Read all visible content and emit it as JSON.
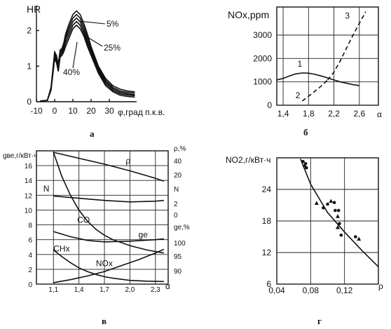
{
  "panel_captions": [
    "а",
    "б",
    "в",
    "г"
  ],
  "chart_data": [
    {
      "id": "a",
      "type": "line",
      "ylabel": "HR",
      "xlabel": "φ,град п.к.в.",
      "xlim": [
        -10,
        45
      ],
      "ylim": [
        0,
        2.7
      ],
      "x_ticks": [
        -10,
        0,
        10,
        20,
        30
      ],
      "x_tick_labels": [
        "-10",
        "0",
        "10",
        "20",
        "30"
      ],
      "y_ticks": [
        0,
        1,
        2
      ],
      "y_tick_labels": [
        "0",
        "1",
        "2"
      ],
      "annotations": [
        "5%",
        "25%",
        "40%"
      ],
      "series": [
        {
          "name": "5%",
          "x": [
            -8,
            -4,
            -2,
            0,
            1,
            2,
            3,
            4,
            5,
            6,
            8,
            10,
            12,
            14,
            16,
            18,
            20,
            24,
            28,
            32,
            36,
            40,
            44
          ],
          "y": [
            0.02,
            0.04,
            0.4,
            1.4,
            1.3,
            1.05,
            1.45,
            1.5,
            1.65,
            1.9,
            2.2,
            2.45,
            2.55,
            2.45,
            2.2,
            1.9,
            1.55,
            1.0,
            0.65,
            0.45,
            0.35,
            0.3,
            0.28
          ]
        },
        {
          "name": "",
          "x": [
            -8,
            -4,
            -2,
            0,
            1,
            2,
            3,
            4,
            5,
            6,
            8,
            10,
            12,
            14,
            16,
            18,
            20,
            24,
            28,
            32,
            36,
            40,
            44
          ],
          "y": [
            0.02,
            0.04,
            0.38,
            1.35,
            1.25,
            1.0,
            1.4,
            1.45,
            1.6,
            1.82,
            2.1,
            2.35,
            2.45,
            2.35,
            2.1,
            1.8,
            1.5,
            0.95,
            0.6,
            0.4,
            0.3,
            0.26,
            0.24
          ]
        },
        {
          "name": "25%",
          "x": [
            -8,
            -4,
            -2,
            0,
            1,
            2,
            3,
            4,
            5,
            6,
            8,
            10,
            12,
            14,
            16,
            18,
            20,
            24,
            28,
            32,
            36,
            40,
            44
          ],
          "y": [
            0.02,
            0.04,
            0.36,
            1.3,
            1.2,
            0.95,
            1.35,
            1.4,
            1.55,
            1.75,
            2.0,
            2.25,
            2.35,
            2.25,
            2.0,
            1.7,
            1.42,
            0.9,
            0.55,
            0.36,
            0.26,
            0.22,
            0.2
          ]
        },
        {
          "name": "",
          "x": [
            -8,
            -4,
            -2,
            0,
            1,
            2,
            3,
            4,
            5,
            6,
            8,
            10,
            12,
            14,
            16,
            18,
            20,
            24,
            28,
            32,
            36,
            40,
            44
          ],
          "y": [
            0.02,
            0.04,
            0.34,
            1.25,
            1.15,
            0.9,
            1.3,
            1.35,
            1.48,
            1.65,
            1.9,
            2.15,
            2.25,
            2.15,
            1.92,
            1.62,
            1.35,
            0.85,
            0.5,
            0.32,
            0.22,
            0.19,
            0.17
          ]
        },
        {
          "name": "40%",
          "x": [
            -8,
            -4,
            -2,
            0,
            1,
            2,
            3,
            4,
            5,
            6,
            8,
            10,
            12,
            14,
            16,
            18,
            20,
            24,
            28,
            32,
            36,
            40,
            44
          ],
          "y": [
            0.02,
            0.04,
            0.32,
            1.2,
            1.1,
            0.85,
            1.25,
            1.3,
            1.4,
            1.55,
            1.8,
            2.05,
            2.15,
            2.05,
            1.85,
            1.55,
            1.3,
            0.8,
            0.45,
            0.28,
            0.18,
            0.15,
            0.13
          ]
        }
      ]
    },
    {
      "id": "b",
      "type": "line",
      "ylabel": "NOx,ppm",
      "xlabel": "α",
      "xlim": [
        1.3,
        2.9
      ],
      "ylim": [
        0,
        4200
      ],
      "grid": true,
      "x_ticks": [
        1.4,
        1.8,
        2.2,
        2.6
      ],
      "x_tick_labels": [
        "1,4",
        "1,8",
        "2,2",
        "2,6"
      ],
      "y_ticks": [
        0,
        1000,
        2000,
        3000
      ],
      "y_tick_labels": [
        "0",
        "1000",
        "2000",
        "3000"
      ],
      "series": [
        {
          "name": "1",
          "x": [
            1.3,
            1.4,
            1.5,
            1.6,
            1.7,
            1.8,
            1.9,
            2.0,
            2.1,
            2.2,
            2.3,
            2.4,
            2.5,
            2.6
          ],
          "y": [
            1080,
            1150,
            1250,
            1340,
            1380,
            1370,
            1320,
            1250,
            1170,
            1080,
            1000,
            940,
            880,
            840
          ]
        },
        {
          "name": "2",
          "x": [
            1.7,
            1.8,
            1.9,
            2.0,
            2.1
          ],
          "y": [
            180,
            380,
            600,
            820,
            1080
          ]
        },
        {
          "name": "3",
          "x": [
            2.1,
            2.2,
            2.3,
            2.4,
            2.5,
            2.6,
            2.7
          ],
          "y": [
            1080,
            1420,
            1900,
            2450,
            3000,
            3500,
            4000
          ]
        }
      ]
    },
    {
      "id": "v",
      "type": "line",
      "xlabel": "α",
      "ylabel": "gве,г/кВт·ч",
      "ylabel_right": "ρ,%",
      "xlim": [
        0.9,
        2.45
      ],
      "ylim": [
        0,
        18
      ],
      "grid": true,
      "x_ticks": [
        1.1,
        1.4,
        1.7,
        2.0,
        2.3
      ],
      "x_tick_labels": [
        "1,1",
        "1,4",
        "1,7",
        "2,0",
        "2,3"
      ],
      "y_ticks": [
        0,
        2,
        4,
        6,
        8,
        10,
        12,
        14,
        16
      ],
      "y_tick_labels": [
        "0",
        "2",
        "4",
        "6",
        "8",
        "10",
        "12",
        "14",
        "16"
      ],
      "right_scale_labels": [
        "ρ,%",
        "40",
        "20",
        "N",
        "2",
        "0",
        "ge,%",
        "100",
        "95",
        "90"
      ],
      "series": [
        {
          "name": "ρ",
          "x": [
            1.1,
            1.4,
            1.7,
            2.0,
            2.3,
            2.4
          ],
          "y": [
            17.8,
            17.0,
            16.2,
            15.3,
            14.3,
            13.9
          ]
        },
        {
          "name": "N",
          "x": [
            1.1,
            1.4,
            1.7,
            2.0,
            2.3,
            2.4
          ],
          "y": [
            11.9,
            11.6,
            11.3,
            11.1,
            11.2,
            11.3
          ]
        },
        {
          "name": "CO",
          "x": [
            1.1,
            1.2,
            1.3,
            1.4,
            1.5,
            1.6,
            1.7,
            1.8,
            2.0,
            2.2,
            2.4
          ],
          "y": [
            17.8,
            14.5,
            12.0,
            10.0,
            8.5,
            7.4,
            6.6,
            6.0,
            5.2,
            4.6,
            4.2
          ]
        },
        {
          "name": "ge",
          "x": [
            1.1,
            1.3,
            1.5,
            1.7,
            2.0,
            2.3,
            2.4
          ],
          "y": [
            7.1,
            6.4,
            5.9,
            5.7,
            5.8,
            6.0,
            6.1
          ]
        },
        {
          "name": "CHx",
          "x": [
            1.1,
            1.2,
            1.3,
            1.4,
            1.5,
            1.6,
            1.7,
            1.8,
            2.0,
            2.2,
            2.4
          ],
          "y": [
            4.6,
            3.7,
            2.9,
            2.2,
            1.7,
            1.3,
            1.0,
            0.8,
            0.5,
            0.4,
            0.35
          ]
        },
        {
          "name": "NOx",
          "x": [
            1.1,
            1.3,
            1.5,
            1.7,
            1.9,
            2.1,
            2.3,
            2.4
          ],
          "y": [
            0.2,
            0.6,
            1.1,
            1.7,
            2.5,
            3.3,
            4.2,
            4.7
          ]
        }
      ]
    },
    {
      "id": "g",
      "type": "scatter",
      "ylabel": "NO2,г/кВт·ч",
      "xlabel": "ρ",
      "xlim": [
        0.04,
        0.16
      ],
      "ylim": [
        6,
        30
      ],
      "grid": true,
      "x_ticks": [
        0.04,
        0.08,
        0.12
      ],
      "x_tick_labels": [
        "0,04",
        "0,08",
        "0,12"
      ],
      "y_ticks": [
        6,
        12,
        18,
        24
      ],
      "y_tick_labels": [
        "6",
        "12",
        "18",
        "24"
      ],
      "points": [
        {
          "x": 0.071,
          "y": 29.3
        },
        {
          "x": 0.073,
          "y": 28.6
        },
        {
          "x": 0.074,
          "y": 28.9
        },
        {
          "x": 0.075,
          "y": 28.1
        },
        {
          "x": 0.087,
          "y": 21.4
        },
        {
          "x": 0.095,
          "y": 20.5
        },
        {
          "x": 0.1,
          "y": 21.2
        },
        {
          "x": 0.104,
          "y": 21.8
        },
        {
          "x": 0.108,
          "y": 21.5
        },
        {
          "x": 0.109,
          "y": 20.0
        },
        {
          "x": 0.112,
          "y": 18.9
        },
        {
          "x": 0.113,
          "y": 20.0
        },
        {
          "x": 0.114,
          "y": 17.5
        },
        {
          "x": 0.112,
          "y": 16.8
        },
        {
          "x": 0.116,
          "y": 15.3
        },
        {
          "x": 0.133,
          "y": 15.0
        },
        {
          "x": 0.137,
          "y": 14.6
        }
      ],
      "fit_line": {
        "x": [
          0.068,
          0.08,
          0.1,
          0.12,
          0.14,
          0.16
        ],
        "y": [
          29.8,
          25.0,
          19.6,
          15.9,
          12.5,
          9.3
        ]
      }
    }
  ]
}
